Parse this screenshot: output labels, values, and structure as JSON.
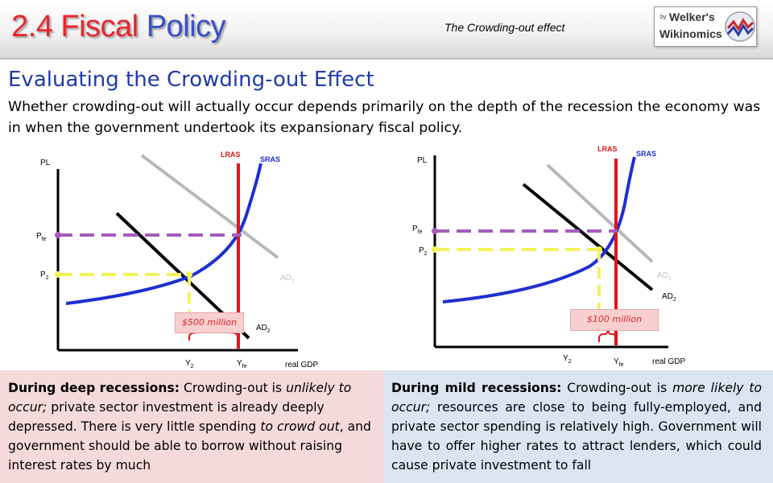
{
  "header": {
    "title_number": "2.4",
    "title_word1": "Fiscal",
    "title_word2": "Policy",
    "subtopic": "The Crowding-out effect",
    "logo": {
      "by": "by",
      "name": "Welker's",
      "sub": "Wikinomics",
      "icon": "wikinomics-logo-icon"
    }
  },
  "section": {
    "heading": "Evaluating the Crowding-out Effect",
    "intro": "Whether crowding-out will actually occur depends primarily on the depth of the recession the economy was in when the government undertook its expansionary fiscal policy."
  },
  "graphs": {
    "left": {
      "ylabel": "PL",
      "xlabel": "real GDP",
      "lras": "LRAS",
      "sras": "SRAS",
      "ad1": "AD",
      "ad1_sub": "1",
      "ad2": "AD",
      "ad2_sub": "2",
      "pfe": "P",
      "pfe_sub": "fe",
      "p2": "P",
      "p2_sub": "2",
      "y2": "Y",
      "y2_sub": "2",
      "yfe": "Y",
      "yfe_sub": "fe",
      "callout": "$500 million"
    },
    "right": {
      "ylabel": "PL",
      "xlabel": "real GDP",
      "lras": "LRAS",
      "sras": "SRAS",
      "ad1": "AD",
      "ad1_sub": "1",
      "ad2": "AD",
      "ad2_sub": "2",
      "pfe": "P",
      "pfe_sub": "fe",
      "p2": "P",
      "p2_sub": "2",
      "y2": "Y",
      "y2_sub": "2",
      "yfe": "Y",
      "yfe_sub": "fe",
      "callout": "$100 million"
    }
  },
  "boxes": {
    "deep": {
      "lead": "During deep recessions:",
      "t1": " Crowding-out is ",
      "em1": "unlikely to occur;",
      "t2": " private sector investment is already deeply depressed.  There is very little spending ",
      "em2": "to crowd out",
      "t3": ", and government should be able to  borrow without raising interest rates by much"
    },
    "mild": {
      "lead": "During mild recessions:",
      "t1": " Crowding-out is ",
      "em1": "more likely to occur;",
      "t2": " resources are close to being fully-employed, and private sector spending is relatively high. Government will have to offer higher rates to attract lenders, which could cause private investment to fall"
    }
  },
  "colors": {
    "title_red": "#e8262b",
    "title_blue": "#3a50c8",
    "heading_blue": "#1f3aa8",
    "lras": "#e0141b",
    "sras": "#1f2fd0",
    "ad1": "#b8b8b8",
    "ad2": "#000000",
    "pfe_line": "#a55cbb",
    "p2_line": "#f2f25a",
    "deep_box": "#f4dada",
    "mild_box": "#dbe5f2"
  }
}
